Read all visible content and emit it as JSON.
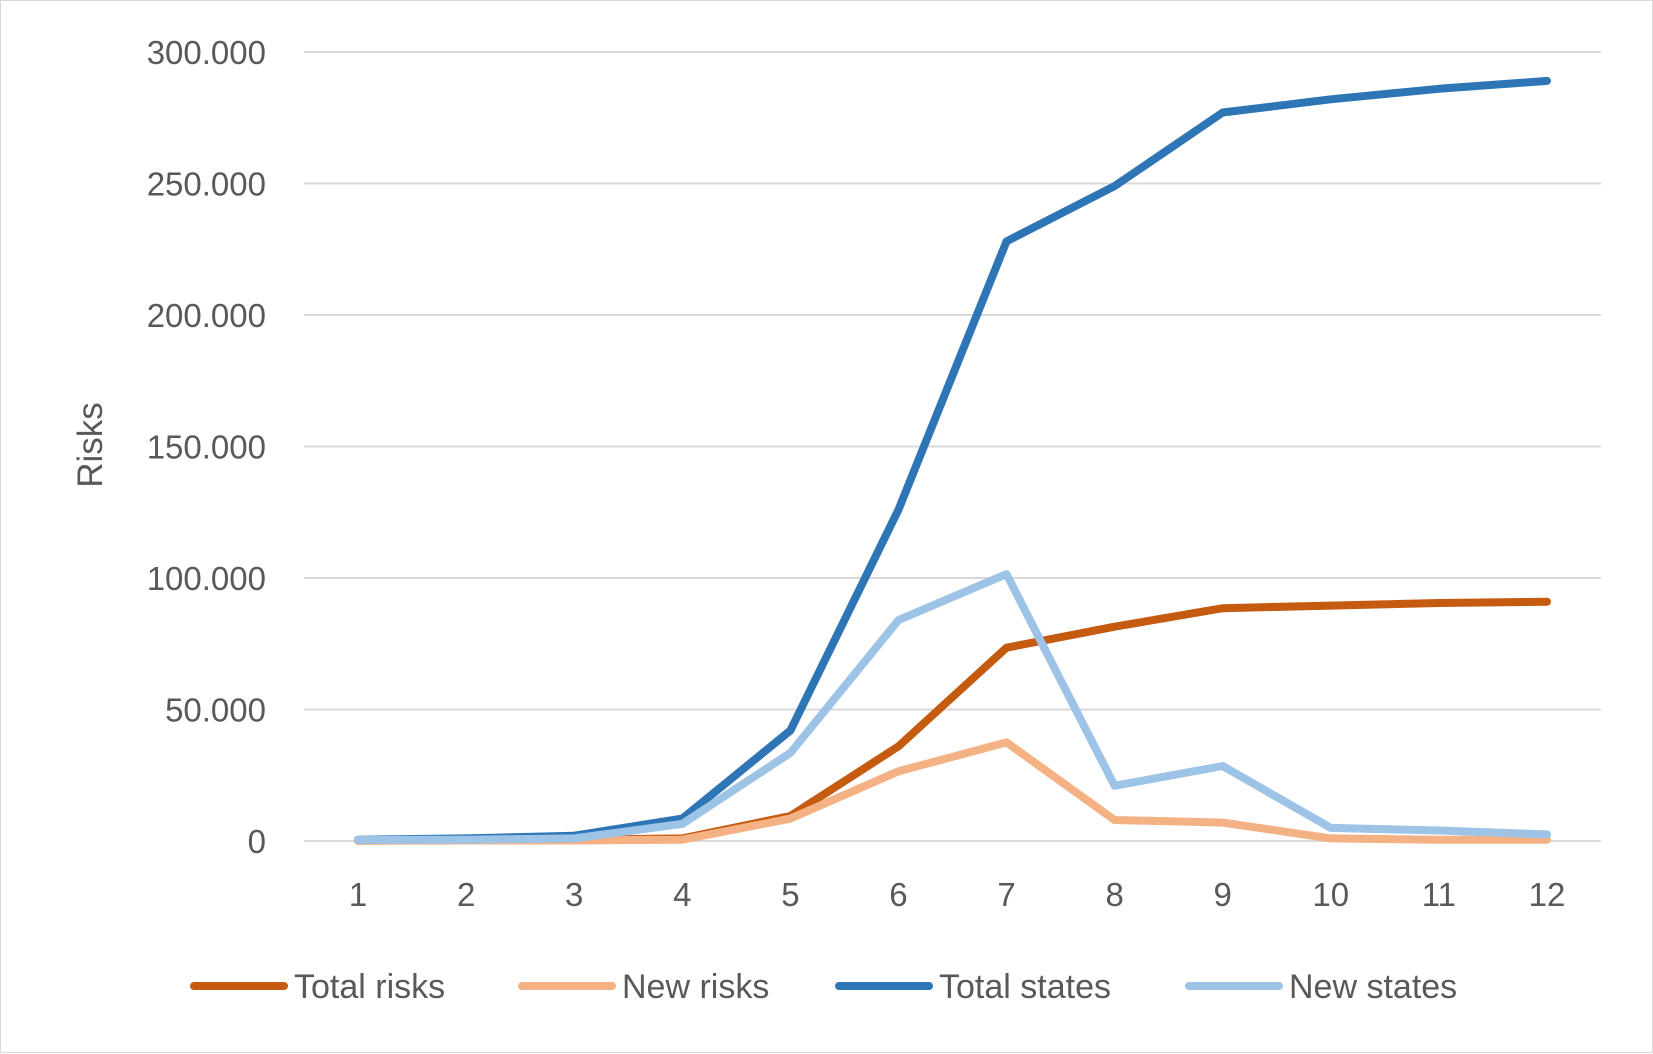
{
  "chart_data": {
    "type": "line",
    "title": "",
    "xlabel": "",
    "ylabel": "Risks",
    "categories": [
      "1",
      "2",
      "3",
      "4",
      "5",
      "6",
      "7",
      "8",
      "9",
      "10",
      "11",
      "12"
    ],
    "ylim": [
      0,
      300000
    ],
    "yticks": [
      0,
      50000,
      100000,
      150000,
      200000,
      250000,
      300000
    ],
    "ytick_labels": [
      "0",
      "50.000",
      "100.000",
      "150.000",
      "200.000",
      "250.000",
      "300.000"
    ],
    "grid": true,
    "legend_position": "bottom",
    "series": [
      {
        "name": "Total risks",
        "color": "#c55a11",
        "values": [
          100,
          300,
          500,
          1000,
          9500,
          36000,
          73500,
          81500,
          88500,
          89500,
          90500,
          91000
        ]
      },
      {
        "name": "New risks",
        "color": "#f4b183",
        "values": [
          100,
          200,
          200,
          500,
          8500,
          26500,
          37500,
          8000,
          7000,
          1000,
          500,
          500
        ]
      },
      {
        "name": "Total states",
        "color": "#2e75b6",
        "values": [
          500,
          1000,
          2000,
          8500,
          42000,
          126000,
          228000,
          249000,
          277000,
          282000,
          286000,
          289000
        ]
      },
      {
        "name": "New states",
        "color": "#9dc3e6",
        "values": [
          400,
          500,
          1000,
          6500,
          33500,
          84000,
          101500,
          21000,
          28500,
          5000,
          4000,
          2500
        ]
      }
    ]
  }
}
